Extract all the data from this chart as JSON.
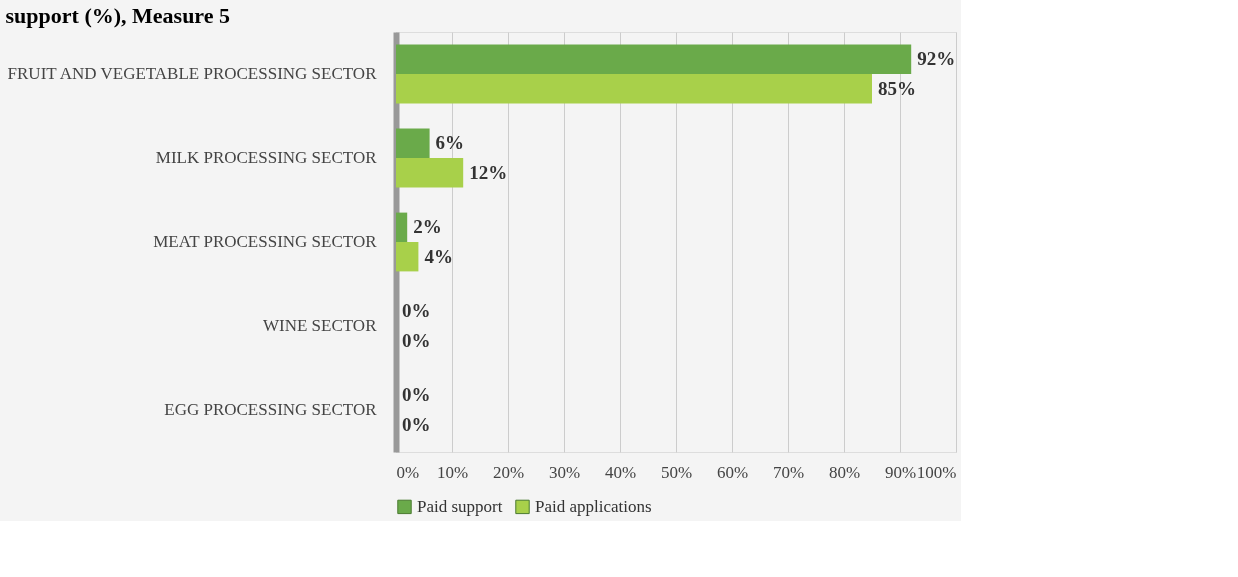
{
  "chart_data": {
    "type": "bar",
    "orientation": "horizontal",
    "title": "support (%), Measure 5",
    "categories": [
      "FRUIT AND VEGETABLE PROCESSING SECTOR",
      "MILK PROCESSING SECTOR",
      "MEAT PROCESSING SECTOR",
      "WINE SECTOR",
      "EGG PROCESSING SECTOR"
    ],
    "series": [
      {
        "name": "Paid support",
        "color": "#6aaa4a",
        "values": [
          92,
          6,
          2,
          0,
          0
        ],
        "value_labels": [
          "92%",
          "6%",
          "2%",
          "0%",
          "0%"
        ]
      },
      {
        "name": "Paid applications",
        "color": "#a8d04a",
        "values": [
          85,
          12,
          4,
          0,
          0
        ],
        "value_labels": [
          "85%",
          "12%",
          "4%",
          "0%",
          "0%"
        ]
      }
    ],
    "xlim": [
      0,
      100
    ],
    "xticks": [
      {
        "value": 0,
        "label": "0%"
      },
      {
        "value": 10,
        "label": "10%"
      },
      {
        "value": 20,
        "label": "20%"
      },
      {
        "value": 30,
        "label": "30%"
      },
      {
        "value": 40,
        "label": "40%"
      },
      {
        "value": 50,
        "label": "50%"
      },
      {
        "value": 60,
        "label": "60%"
      },
      {
        "value": 70,
        "label": "70%"
      },
      {
        "value": 80,
        "label": "80%"
      },
      {
        "value": 90,
        "label": "90%"
      },
      {
        "value": 100,
        "label": "100%"
      }
    ],
    "grid": "x",
    "legend": "bottom"
  }
}
